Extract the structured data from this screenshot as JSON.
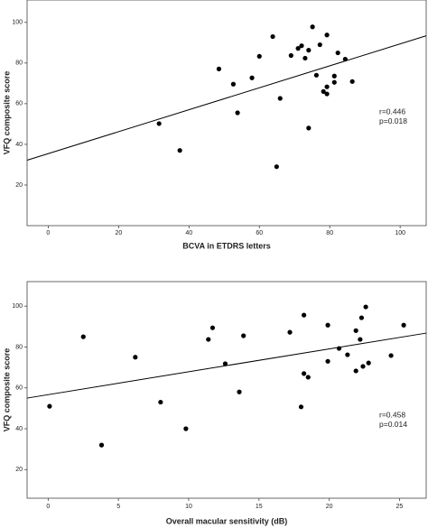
{
  "chart_data": [
    {
      "type": "scatter",
      "x_label": "BCVA in ETDRS letters",
      "y_label": "VFQ composite score",
      "xlim": [
        -6,
        107.4
      ],
      "ylim": [
        0,
        111
      ],
      "xticks": [
        0,
        20,
        40,
        60,
        80,
        100
      ],
      "yticks": [
        20,
        40,
        60,
        80,
        100
      ],
      "color": "#000000",
      "series": [
        {
          "x": [
            31.5,
            37.4,
            48.5,
            52.6,
            53.8,
            57.9,
            60,
            63.8,
            65.9,
            64.9,
            69,
            71,
            72,
            73,
            74,
            75.1,
            74,
            76.2,
            77.2,
            78.2,
            79.2,
            79.2,
            79.2,
            81.3,
            81.3,
            82.3,
            84.4,
            86.4
          ],
          "values": [
            50.2,
            37,
            77.1,
            69.6,
            55.5,
            72.7,
            83.3,
            93,
            62.6,
            29,
            83.7,
            87.2,
            88.5,
            82.4,
            86.3,
            97.8,
            48,
            74,
            89,
            66,
            68.3,
            64.8,
            93.8,
            73.6,
            70.5,
            85,
            81.9,
            70.9
          ]
        }
      ],
      "regression_line": {
        "x": [
          -6,
          107.4
        ],
        "values": [
          32.2,
          93.4
        ]
      },
      "annotations": [
        "r=0.446",
        "p=0.018"
      ]
    },
    {
      "type": "scatter",
      "x_label": "Overall macular sensitivity (dB)",
      "y_label": "VFQ composite score",
      "xlim": [
        -1.5,
        26.9
      ],
      "ylim": [
        6,
        112
      ],
      "xticks": [
        0,
        5,
        10,
        15,
        20,
        25
      ],
      "yticks": [
        20,
        40,
        60,
        80,
        100
      ],
      "color": "#000000",
      "series": [
        {
          "x": [
            0.1,
            2.5,
            3.8,
            6.2,
            8,
            9.8,
            11.4,
            11.7,
            12.6,
            13.6,
            13.9,
            17.2,
            18,
            18.2,
            18.2,
            18.5,
            19.9,
            19.9,
            20.7,
            21.3,
            21.9,
            21.9,
            22.2,
            22.3,
            22.6,
            22.4,
            22.8,
            24.4,
            25.3
          ],
          "values": [
            51,
            85,
            32,
            75,
            53,
            40,
            83.7,
            89.4,
            71.8,
            58,
            85.5,
            87.2,
            50.7,
            95.6,
            67,
            65.2,
            90.7,
            73,
            79.3,
            76.2,
            88,
            68.3,
            83.7,
            94.3,
            99.6,
            70.5,
            72.2,
            75.8,
            90.7
          ]
        }
      ],
      "regression_line": {
        "x": [
          -1.5,
          26.9
        ],
        "values": [
          55,
          86.8
        ]
      },
      "annotations": [
        "r=0.458",
        "p=0.014"
      ]
    }
  ]
}
